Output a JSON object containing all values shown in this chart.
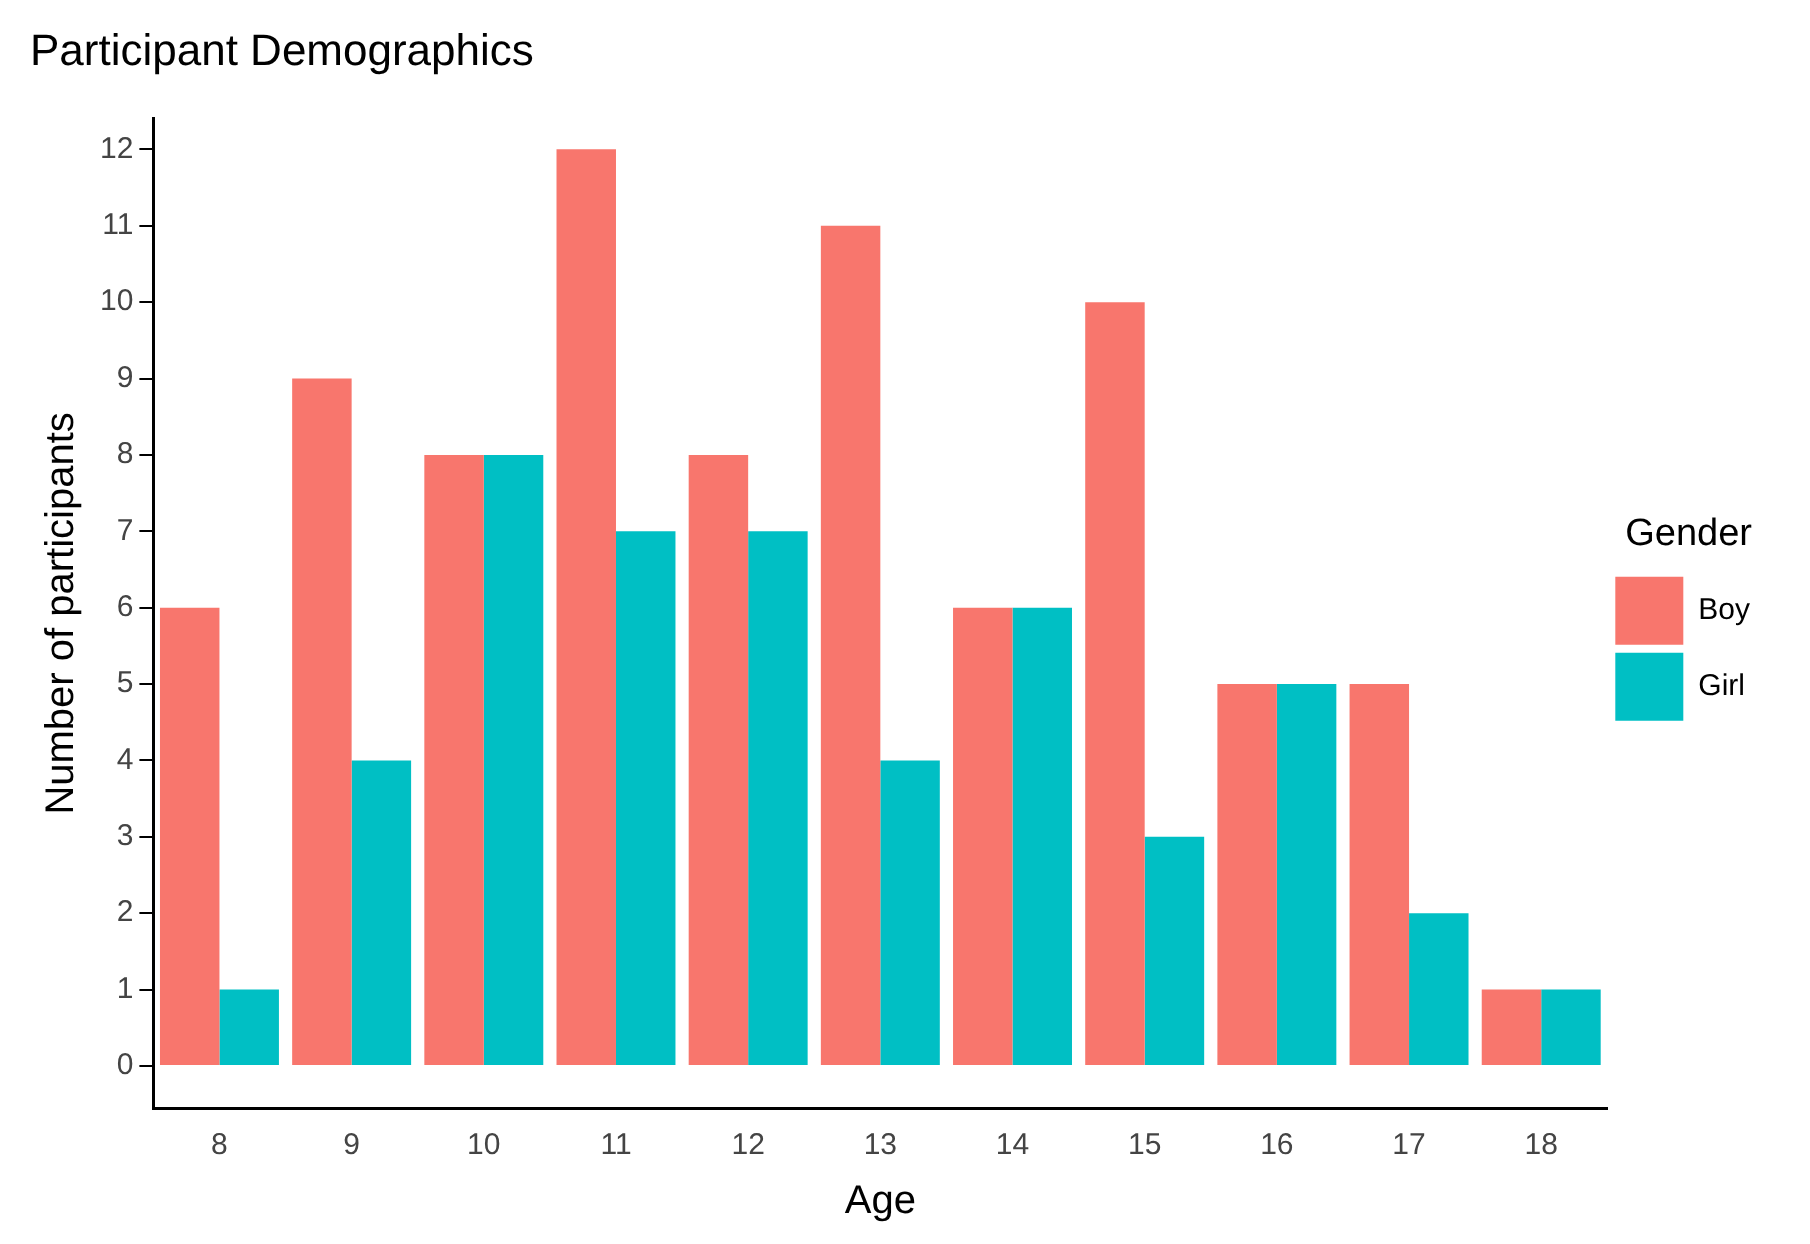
{
  "chart_data": {
    "type": "bar",
    "title": "Participant Demographics",
    "xlabel": "Age",
    "ylabel": "Number of participants",
    "legend_title": "Gender",
    "categories": [
      "8",
      "9",
      "10",
      "11",
      "12",
      "13",
      "14",
      "15",
      "16",
      "17",
      "18"
    ],
    "series": [
      {
        "name": "Boy",
        "color": "#f8766d",
        "values": [
          6,
          9,
          8,
          12,
          8,
          11,
          6,
          10,
          5,
          5,
          1
        ]
      },
      {
        "name": "Girl",
        "color": "#00bfc4",
        "values": [
          1,
          4,
          8,
          7,
          7,
          4,
          6,
          3,
          5,
          2,
          1
        ]
      }
    ],
    "ylim": [
      -0.55,
      12.4
    ],
    "yticks": [
      0,
      1,
      2,
      3,
      4,
      5,
      6,
      7,
      8,
      9,
      10,
      11,
      12
    ],
    "grid": false,
    "legend": "right"
  }
}
